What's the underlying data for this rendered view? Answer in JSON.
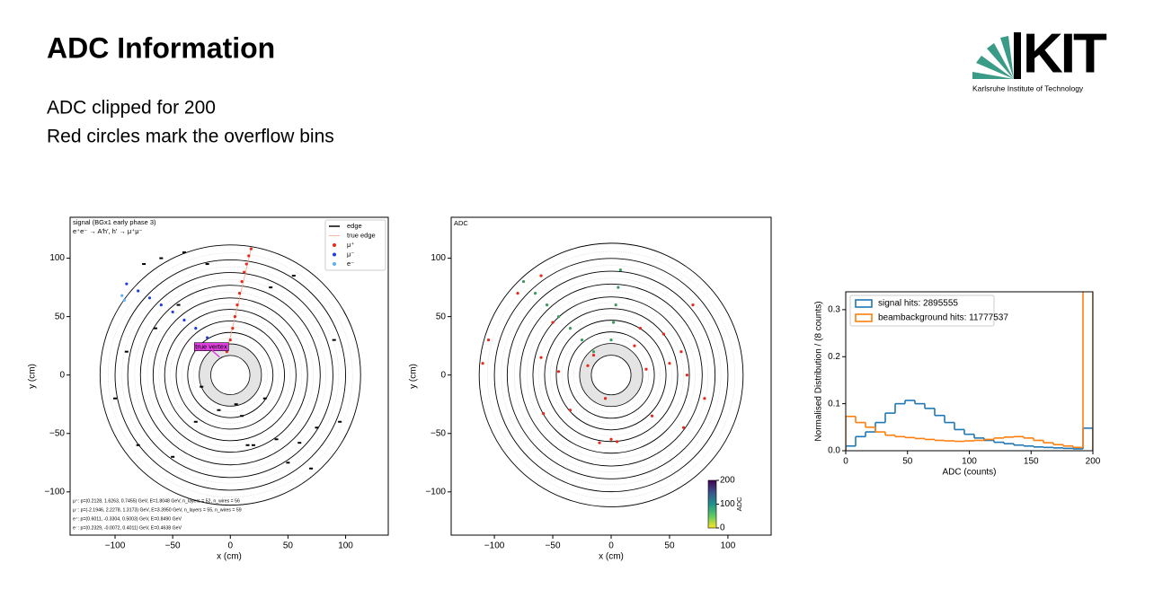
{
  "header": {
    "title": "ADC Information",
    "lines": [
      "ADC clipped for 200",
      "Red circles mark the overflow bins"
    ],
    "logo": "KIT",
    "logo_caption": "Karlsruhe Institute of Technology"
  },
  "chart_data": [
    {
      "type": "scatter",
      "xlabel": "x (cm)",
      "ylabel": "y (cm)",
      "annotations": [
        "signal (BGx1 early phase 3)",
        "e⁺e⁻ → A′h′, h′ → μ⁺μ⁻"
      ],
      "vertex_label": "true vertex",
      "info": [
        "μ⁺: p=(0.2128, 1.6263, 0.7455) GeV, E=1.8048 GeV, n_layers = 52, n_wires = 56",
        "μ⁻: p=(-2.1946, 2.2278, 1.3173) GeV, E=3.3950 GeV, n_layers = 55, n_wires = 59",
        "e⁺: p=(0.6011, -0.3304, 0.5003) GeV, E=0.8490 GeV",
        "e⁻: p=(0.2329, -0.0072, 0.4011) GeV, E=0.4638 GeV"
      ],
      "xlim": [
        -139,
        137
      ],
      "ylim": [
        -137,
        135
      ],
      "xticks": [
        {
          "value": -100,
          "label": "−100"
        },
        {
          "value": -50,
          "label": "−50"
        },
        0,
        50,
        100
      ],
      "yticks": [
        {
          "value": -100,
          "label": "−100"
        },
        {
          "value": -50,
          "label": "−50"
        },
        0,
        50,
        100
      ],
      "series": [
        {
          "name": "edge",
          "color": "#000000",
          "marker": "line",
          "x": [
            -75,
            -60,
            -40,
            -20,
            20,
            40,
            60,
            75,
            90,
            -90,
            -100,
            -80,
            -50,
            -30,
            -10,
            10,
            30,
            50,
            70,
            95,
            -65,
            -45,
            15,
            35,
            55,
            -25,
            5
          ],
          "values": [
            95,
            100,
            105,
            95,
            -60,
            -55,
            -58,
            -45,
            30,
            20,
            -20,
            -60,
            -70,
            -40,
            -30,
            -35,
            -20,
            -75,
            -80,
            -40,
            40,
            60,
            -60,
            75,
            85,
            -10,
            -25
          ]
        },
        {
          "name": "true edge",
          "color": "#f4a582",
          "marker": "thin",
          "x": [
            -3,
            18
          ],
          "values": [
            20,
            108
          ]
        },
        {
          "name": "μ⁺",
          "color": "#e8291c",
          "marker": "dot",
          "x": [
            -3,
            0,
            2,
            4,
            6,
            8,
            10,
            12,
            14,
            16,
            18
          ],
          "values": [
            20,
            30,
            40,
            50,
            60,
            70,
            80,
            88,
            95,
            102,
            108
          ]
        },
        {
          "name": "μ⁻",
          "color": "#1f3fe0",
          "marker": "dot",
          "x": [
            -12,
            -20,
            -30,
            -40,
            -50,
            -60,
            -70,
            -80,
            -90
          ],
          "values": [
            25,
            32,
            40,
            47,
            54,
            60,
            66,
            72,
            78
          ]
        },
        {
          "name": "e⁻",
          "color": "#5fb0f0",
          "marker": "dot",
          "x": [
            -92,
            -94
          ],
          "values": [
            64,
            68
          ]
        }
      ]
    },
    {
      "type": "scatter",
      "title": "ADC",
      "xlabel": "x (cm)",
      "ylabel": "y (cm)",
      "xlim": [
        -137,
        137
      ],
      "ylim": [
        -137,
        135
      ],
      "xticks": [
        {
          "value": -100,
          "label": "−100"
        },
        {
          "value": -50,
          "label": "−50"
        },
        0,
        50,
        100
      ],
      "yticks": [
        {
          "value": -100,
          "label": "−100"
        },
        {
          "value": -50,
          "label": "−50"
        },
        0,
        50,
        100
      ],
      "colorbar": {
        "label": "ADC",
        "lim": [
          0,
          200
        ],
        "ticks": [
          0,
          100,
          200
        ]
      },
      "series": [
        {
          "color": "#3b9c5a",
          "marker": "dot",
          "x": [
            -15,
            -25,
            -35,
            -45,
            -55,
            -65,
            -75,
            0,
            2,
            4,
            6,
            8
          ],
          "values": [
            20,
            30,
            40,
            50,
            60,
            70,
            80,
            30,
            45,
            60,
            75,
            90
          ]
        },
        {
          "color": "#e8291c",
          "marker": "dot",
          "x": [
            -60,
            -58,
            -45,
            -20,
            -15,
            20,
            45,
            50,
            60,
            62,
            -35,
            -10,
            5,
            25,
            -80,
            -105,
            -110,
            65,
            70,
            -5,
            0,
            -50,
            35,
            -60,
            30,
            80
          ],
          "values": [
            15,
            -33,
            3,
            8,
            17,
            25,
            35,
            10,
            20,
            -45,
            -30,
            -58,
            -57,
            40,
            70,
            30,
            10,
            0,
            60,
            -20,
            -55,
            45,
            -35,
            85,
            5,
            -20
          ]
        }
      ]
    },
    {
      "type": "histogram",
      "xlabel": "ADC (counts)",
      "ylabel": "Normalised Distribution / (8 counts)",
      "xlim": [
        0,
        200
      ],
      "ylim": [
        0,
        0.338
      ],
      "xticks": [
        0,
        50,
        100,
        150,
        200
      ],
      "yticks": [
        {
          "value": 0,
          "label": "0.0"
        },
        {
          "value": 0.1,
          "label": "0.1"
        },
        {
          "value": 0.2,
          "label": "0.2"
        },
        {
          "value": 0.3,
          "label": "0.3"
        }
      ],
      "bins": [
        0,
        8,
        16,
        24,
        32,
        40,
        48,
        56,
        64,
        72,
        80,
        88,
        96,
        104,
        112,
        120,
        128,
        136,
        144,
        152,
        160,
        168,
        176,
        184,
        192,
        200
      ],
      "series": [
        {
          "name": "signal hits: 2895555",
          "color": "#1f77b4",
          "values": [
            0.01,
            0.03,
            0.04,
            0.06,
            0.08,
            0.1,
            0.107,
            0.1,
            0.09,
            0.075,
            0.06,
            0.045,
            0.035,
            0.027,
            0.022,
            0.018,
            0.015,
            0.012,
            0.01,
            0.008,
            0.007,
            0.006,
            0.005,
            0.004,
            0.048
          ]
        },
        {
          "name": "beambackground hits: 11777537",
          "color": "#ff7f0e",
          "values": [
            0.073,
            0.06,
            0.05,
            0.04,
            0.033,
            0.03,
            0.028,
            0.026,
            0.024,
            0.022,
            0.021,
            0.02,
            0.021,
            0.022,
            0.024,
            0.027,
            0.029,
            0.03,
            0.027,
            0.022,
            0.017,
            0.013,
            0.01,
            0.007,
            0.34
          ]
        }
      ]
    }
  ]
}
